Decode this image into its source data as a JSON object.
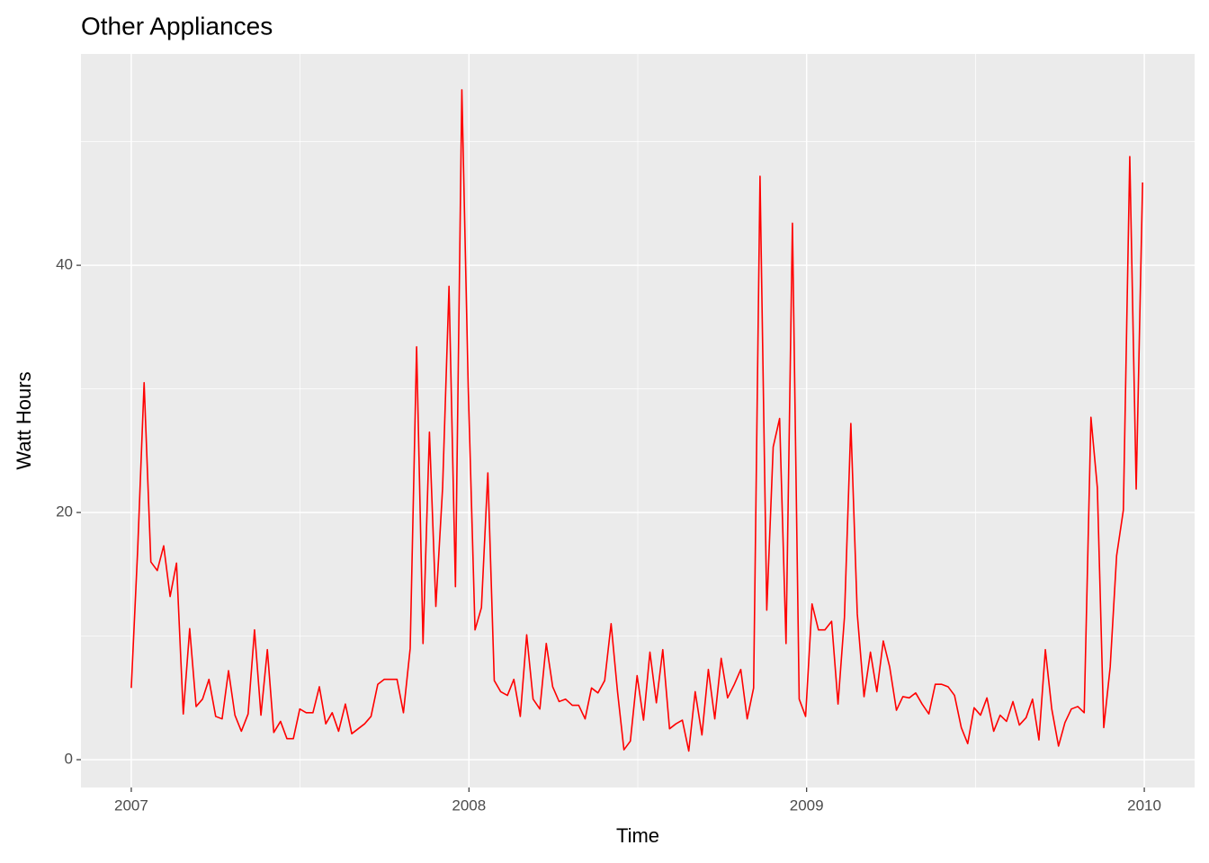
{
  "chart_data": {
    "type": "line",
    "title": "Other Appliances",
    "x_label": "Time",
    "y_label": "Watt Hours",
    "x": [
      2007,
      2007.019,
      2007.038,
      2007.058,
      2007.077,
      2007.096,
      2007.115,
      2007.134,
      2007.154,
      2007.173,
      2007.192,
      2007.211,
      2007.23,
      2007.25,
      2007.269,
      2007.288,
      2007.307,
      2007.326,
      2007.346,
      2007.365,
      2007.384,
      2007.403,
      2007.422,
      2007.442,
      2007.461,
      2007.48,
      2007.499,
      2007.518,
      2007.538,
      2007.557,
      2007.576,
      2007.595,
      2007.614,
      2007.634,
      2007.653,
      2007.672,
      2007.691,
      2007.71,
      2007.73,
      2007.749,
      2007.768,
      2007.787,
      2007.806,
      2007.826,
      2007.845,
      2007.864,
      2007.883,
      2007.902,
      2007.922,
      2007.941,
      2007.96,
      2007.979,
      2007.998,
      2008.018,
      2008.037,
      2008.056,
      2008.075,
      2008.094,
      2008.114,
      2008.133,
      2008.152,
      2008.171,
      2008.19,
      2008.21,
      2008.229,
      2008.248,
      2008.267,
      2008.286,
      2008.306,
      2008.325,
      2008.344,
      2008.363,
      2008.382,
      2008.402,
      2008.421,
      2008.44,
      2008.459,
      2008.478,
      2008.498,
      2008.517,
      2008.536,
      2008.555,
      2008.574,
      2008.594,
      2008.613,
      2008.632,
      2008.651,
      2008.67,
      2008.69,
      2008.709,
      2008.728,
      2008.747,
      2008.766,
      2008.786,
      2008.805,
      2008.824,
      2008.843,
      2008.862,
      2008.882,
      2008.901,
      2008.92,
      2008.939,
      2008.958,
      2008.978,
      2008.997,
      2009.016,
      2009.035,
      2009.054,
      2009.074,
      2009.093,
      2009.112,
      2009.131,
      2009.15,
      2009.17,
      2009.189,
      2009.208,
      2009.227,
      2009.246,
      2009.266,
      2009.285,
      2009.304,
      2009.323,
      2009.342,
      2009.362,
      2009.381,
      2009.4,
      2009.419,
      2009.438,
      2009.458,
      2009.477,
      2009.496,
      2009.515,
      2009.534,
      2009.554,
      2009.573,
      2009.592,
      2009.611,
      2009.63,
      2009.65,
      2009.669,
      2009.688,
      2009.707,
      2009.726,
      2009.746,
      2009.765,
      2009.784,
      2009.803,
      2009.822,
      2009.842,
      2009.861,
      2009.88,
      2009.899,
      2009.918,
      2009.938,
      2009.957,
      2009.976,
      2009.995
    ],
    "series": [
      {
        "color": "#ff0000",
        "values": [
          5.8,
          17,
          30.5,
          16,
          15.3,
          17.3,
          13.2,
          15.9,
          3.7,
          10.6,
          4.3,
          4.9,
          6.5,
          3.5,
          3.3,
          7.2,
          3.6,
          2.3,
          3.7,
          10.5,
          3.6,
          8.9,
          2.2,
          3.1,
          1.7,
          1.7,
          4.1,
          3.8,
          3.8,
          5.9,
          2.9,
          3.8,
          2.3,
          4.5,
          2.1,
          2.5,
          2.9,
          3.5,
          6.1,
          6.5,
          6.5,
          6.5,
          3.8,
          9,
          33.4,
          9.4,
          26.5,
          12.4,
          22,
          38.3,
          14,
          54.2,
          30,
          10.5,
          12.3,
          23.2,
          6.4,
          5.5,
          5.2,
          6.5,
          3.5,
          10.1,
          4.9,
          4.1,
          9.4,
          5.9,
          4.7,
          4.9,
          4.4,
          4.4,
          3.3,
          5.8,
          5.4,
          6.4,
          11,
          5.5,
          0.8,
          1.5,
          6.8,
          3.2,
          8.7,
          4.6,
          8.9,
          2.5,
          2.9,
          3.2,
          0.7,
          5.5,
          2,
          7.3,
          3.3,
          8.2,
          5,
          6.1,
          7.3,
          3.3,
          5.8,
          47.2,
          12.1,
          25.3,
          27.6,
          9.4,
          43.4,
          4.9,
          3.5,
          12.6,
          10.5,
          10.5,
          11.2,
          4.5,
          11.5,
          27.2,
          11.8,
          5.1,
          8.7,
          5.5,
          9.6,
          7.5,
          4,
          5.1,
          5,
          5.4,
          4.5,
          3.7,
          6.1,
          6.1,
          5.9,
          5.2,
          2.6,
          1.3,
          4.2,
          3.6,
          5,
          2.3,
          3.6,
          3.1,
          4.7,
          2.8,
          3.4,
          4.9,
          1.6,
          8.9,
          4.1,
          1.1,
          3,
          4.1,
          4.3,
          3.8,
          27.7,
          22,
          2.6,
          7.5,
          16.5,
          20.2,
          48.8,
          21.9,
          46.7
        ]
      }
    ],
    "xlim": [
      2006.851,
      2010.149
    ],
    "xticks": [
      2007,
      2008,
      2009,
      2010
    ],
    "xminor": [
      2007.5,
      2008.5,
      2009.5
    ],
    "ylim": [
      -2.25,
      57.1
    ],
    "yticks": [
      0,
      20,
      40
    ],
    "yminor": [
      10,
      30,
      50
    ],
    "grid": true
  }
}
